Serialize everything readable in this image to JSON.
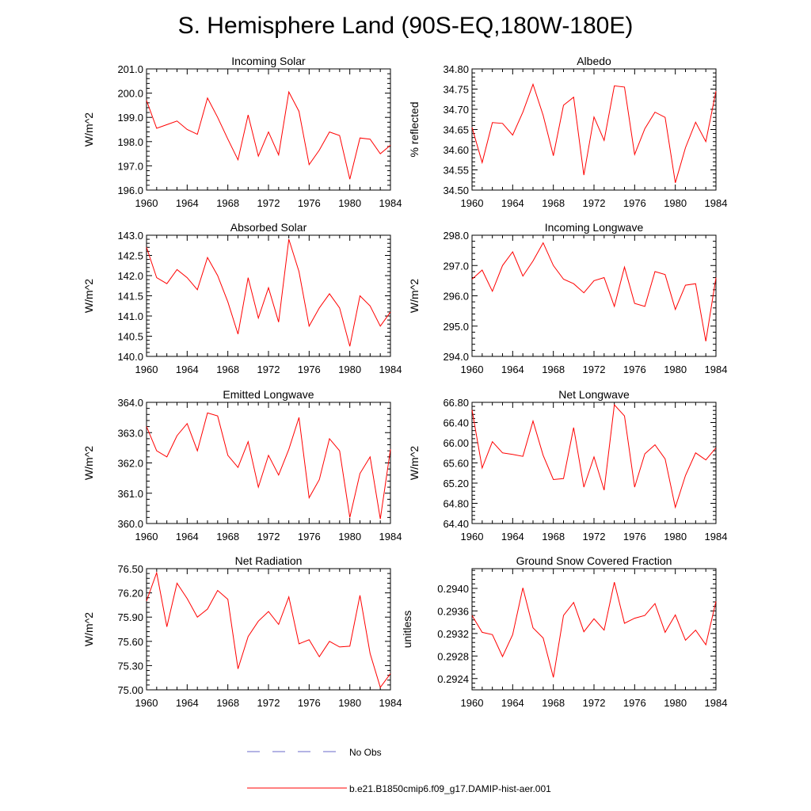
{
  "title": "S. Hemisphere Land (90S-EQ,180W-180E)",
  "legend": {
    "items": [
      {
        "label": "No Obs",
        "color": "#6a6ac8",
        "dashed": true
      },
      {
        "label": "b.e21.B1850cmip6.f09_g17.DAMIP-hist-aer.001",
        "color": "#ff0000",
        "dashed": false
      }
    ]
  },
  "chart_data": [
    {
      "type": "line",
      "title": "Incoming Solar",
      "xlabel": "",
      "ylabel": "W/m^2",
      "xlim": [
        1960,
        1984
      ],
      "ylim": [
        196.0,
        201.0
      ],
      "xticks": [
        "1960",
        "1964",
        "1968",
        "1972",
        "1976",
        "1980",
        "1984"
      ],
      "yticks": [
        "196.0",
        "197.0",
        "198.0",
        "199.0",
        "200.0",
        "201.0"
      ],
      "series": [
        {
          "color": "#ff0000",
          "x": [
            1960,
            1961,
            1962,
            1963,
            1964,
            1965,
            1966,
            1967,
            1968,
            1969,
            1970,
            1971,
            1972,
            1973,
            1974,
            1975,
            1976,
            1977,
            1978,
            1979,
            1980,
            1981,
            1982,
            1983,
            1984
          ],
          "values": [
            199.7,
            198.55,
            198.7,
            198.85,
            198.5,
            198.3,
            199.8,
            199.0,
            198.1,
            197.25,
            199.1,
            197.4,
            198.4,
            197.45,
            200.05,
            199.25,
            197.05,
            197.65,
            198.4,
            198.25,
            196.45,
            198.15,
            198.1,
            197.5,
            197.85
          ]
        }
      ]
    },
    {
      "type": "line",
      "title": "Albedo",
      "xlabel": "",
      "ylabel": "% reflected",
      "xlim": [
        1960,
        1984
      ],
      "ylim": [
        34.5,
        34.8
      ],
      "xticks": [
        "1960",
        "1964",
        "1968",
        "1972",
        "1976",
        "1980",
        "1984"
      ],
      "yticks": [
        "34.50",
        "34.55",
        "34.60",
        "34.65",
        "34.70",
        "34.75",
        "34.80"
      ],
      "series": [
        {
          "color": "#ff0000",
          "x": [
            1960,
            1961,
            1962,
            1963,
            1964,
            1965,
            1966,
            1967,
            1968,
            1969,
            1970,
            1971,
            1972,
            1973,
            1974,
            1975,
            1976,
            1977,
            1978,
            1979,
            1980,
            1981,
            1982,
            1983,
            1984
          ],
          "values": [
            34.655,
            34.568,
            34.667,
            34.665,
            34.636,
            34.693,
            34.762,
            34.685,
            34.585,
            34.71,
            34.73,
            34.537,
            34.681,
            34.623,
            34.758,
            34.755,
            34.588,
            34.652,
            34.693,
            34.68,
            34.518,
            34.605,
            34.668,
            34.62,
            34.745
          ]
        }
      ]
    },
    {
      "type": "line",
      "title": "Absorbed Solar",
      "xlabel": "",
      "ylabel": "W/m^2",
      "xlim": [
        1960,
        1984
      ],
      "ylim": [
        140.0,
        143.0
      ],
      "xticks": [
        "1960",
        "1964",
        "1968",
        "1972",
        "1976",
        "1980",
        "1984"
      ],
      "yticks": [
        "140.0",
        "140.5",
        "141.0",
        "141.5",
        "142.0",
        "142.5",
        "143.0"
      ],
      "series": [
        {
          "color": "#ff0000",
          "x": [
            1960,
            1961,
            1962,
            1963,
            1964,
            1965,
            1966,
            1967,
            1968,
            1969,
            1970,
            1971,
            1972,
            1973,
            1974,
            1975,
            1976,
            1977,
            1978,
            1979,
            1980,
            1981,
            1982,
            1983,
            1984
          ],
          "values": [
            142.7,
            141.95,
            141.8,
            142.15,
            141.95,
            141.65,
            142.45,
            142.0,
            141.35,
            140.55,
            141.95,
            140.95,
            141.7,
            140.85,
            142.9,
            142.1,
            140.75,
            141.2,
            141.55,
            141.2,
            140.25,
            141.5,
            141.25,
            140.75,
            141.1
          ]
        }
      ]
    },
    {
      "type": "line",
      "title": "Incoming Longwave",
      "xlabel": "",
      "ylabel": "W/m^2",
      "xlim": [
        1960,
        1984
      ],
      "ylim": [
        294.0,
        298.0
      ],
      "xticks": [
        "1960",
        "1964",
        "1968",
        "1972",
        "1976",
        "1980",
        "1984"
      ],
      "yticks": [
        "294.0",
        "295.0",
        "296.0",
        "297.0",
        "298.0"
      ],
      "series": [
        {
          "color": "#ff0000",
          "x": [
            1960,
            1961,
            1962,
            1963,
            1964,
            1965,
            1966,
            1967,
            1968,
            1969,
            1970,
            1971,
            1972,
            1973,
            1974,
            1975,
            1976,
            1977,
            1978,
            1979,
            1980,
            1981,
            1982,
            1983,
            1984
          ],
          "values": [
            296.55,
            296.85,
            296.15,
            297.0,
            297.45,
            296.65,
            297.15,
            297.75,
            297.0,
            296.55,
            296.4,
            296.1,
            296.5,
            296.6,
            295.65,
            296.95,
            295.75,
            295.65,
            296.8,
            296.7,
            295.55,
            296.35,
            296.4,
            294.5,
            296.6
          ]
        }
      ]
    },
    {
      "type": "line",
      "title": "Emitted Longwave",
      "xlabel": "",
      "ylabel": "W/m^2",
      "xlim": [
        1960,
        1984
      ],
      "ylim": [
        360.0,
        364.0
      ],
      "xticks": [
        "1960",
        "1964",
        "1968",
        "1972",
        "1976",
        "1980",
        "1984"
      ],
      "yticks": [
        "360.0",
        "361.0",
        "362.0",
        "363.0",
        "364.0"
      ],
      "series": [
        {
          "color": "#ff0000",
          "x": [
            1960,
            1961,
            1962,
            1963,
            1964,
            1965,
            1966,
            1967,
            1968,
            1969,
            1970,
            1971,
            1972,
            1973,
            1974,
            1975,
            1976,
            1977,
            1978,
            1979,
            1980,
            1981,
            1982,
            1983,
            1984
          ],
          "values": [
            363.2,
            362.4,
            362.2,
            362.9,
            363.3,
            362.4,
            363.65,
            363.55,
            362.25,
            361.85,
            362.7,
            361.2,
            362.25,
            361.6,
            362.45,
            363.5,
            360.85,
            361.45,
            362.8,
            362.4,
            360.2,
            361.65,
            362.2,
            360.15,
            362.45
          ]
        }
      ]
    },
    {
      "type": "line",
      "title": "Net Longwave",
      "xlabel": "",
      "ylabel": "W/m^2",
      "xlim": [
        1960,
        1984
      ],
      "ylim": [
        64.4,
        66.8
      ],
      "xticks": [
        "1960",
        "1964",
        "1968",
        "1972",
        "1976",
        "1980",
        "1984"
      ],
      "yticks": [
        "64.40",
        "64.80",
        "65.20",
        "65.60",
        "66.00",
        "66.40",
        "66.80"
      ],
      "series": [
        {
          "color": "#ff0000",
          "x": [
            1960,
            1961,
            1962,
            1963,
            1964,
            1965,
            1966,
            1967,
            1968,
            1969,
            1970,
            1971,
            1972,
            1973,
            1974,
            1975,
            1976,
            1977,
            1978,
            1979,
            1980,
            1981,
            1982,
            1983,
            1984
          ],
          "values": [
            66.65,
            65.5,
            66.02,
            65.8,
            65.77,
            65.73,
            66.43,
            65.75,
            65.27,
            65.29,
            66.3,
            65.12,
            65.72,
            65.06,
            66.75,
            66.53,
            65.12,
            65.78,
            65.96,
            65.68,
            64.72,
            65.35,
            65.8,
            65.66,
            65.9
          ]
        }
      ]
    },
    {
      "type": "line",
      "title": "Net Radiation",
      "xlabel": "",
      "ylabel": "W/m^2",
      "xlim": [
        1960,
        1984
      ],
      "ylim": [
        75.0,
        76.5
      ],
      "xticks": [
        "1960",
        "1964",
        "1968",
        "1972",
        "1976",
        "1980",
        "1984"
      ],
      "yticks": [
        "75.00",
        "75.30",
        "75.60",
        "75.90",
        "76.20",
        "76.50"
      ],
      "series": [
        {
          "color": "#ff0000",
          "x": [
            1960,
            1961,
            1962,
            1963,
            1964,
            1965,
            1966,
            1967,
            1968,
            1969,
            1970,
            1971,
            1972,
            1973,
            1974,
            1975,
            1976,
            1977,
            1978,
            1979,
            1980,
            1981,
            1982,
            1983,
            1984
          ],
          "values": [
            76.1,
            76.45,
            75.78,
            76.32,
            76.13,
            75.9,
            76.0,
            76.23,
            76.12,
            75.26,
            75.66,
            75.85,
            75.97,
            75.81,
            76.15,
            75.57,
            75.62,
            75.41,
            75.6,
            75.53,
            75.54,
            76.17,
            75.45,
            75.03,
            75.2
          ]
        }
      ]
    },
    {
      "type": "line",
      "title": "Ground Snow Covered Fraction",
      "xlabel": "",
      "ylabel": "unitless",
      "xlim": [
        1960,
        1984
      ],
      "ylim": [
        0.2922,
        0.29435
      ],
      "xticks": [
        "1960",
        "1964",
        "1968",
        "1972",
        "1976",
        "1980",
        "1984"
      ],
      "yticks": [
        "0.2924",
        "0.2928",
        "0.2932",
        "0.2936",
        "0.2940"
      ],
      "series": [
        {
          "color": "#ff0000",
          "x": [
            1960,
            1961,
            1962,
            1963,
            1964,
            1965,
            1966,
            1967,
            1968,
            1969,
            1970,
            1971,
            1972,
            1973,
            1974,
            1975,
            1976,
            1977,
            1978,
            1979,
            1980,
            1981,
            1982,
            1983,
            1984
          ],
          "values": [
            0.29352,
            0.29322,
            0.29318,
            0.29279,
            0.29318,
            0.29401,
            0.2933,
            0.29312,
            0.29242,
            0.29352,
            0.29375,
            0.29323,
            0.29346,
            0.29326,
            0.29411,
            0.29338,
            0.29347,
            0.29352,
            0.29373,
            0.29322,
            0.29353,
            0.29308,
            0.29326,
            0.293,
            0.29377
          ]
        }
      ]
    }
  ]
}
